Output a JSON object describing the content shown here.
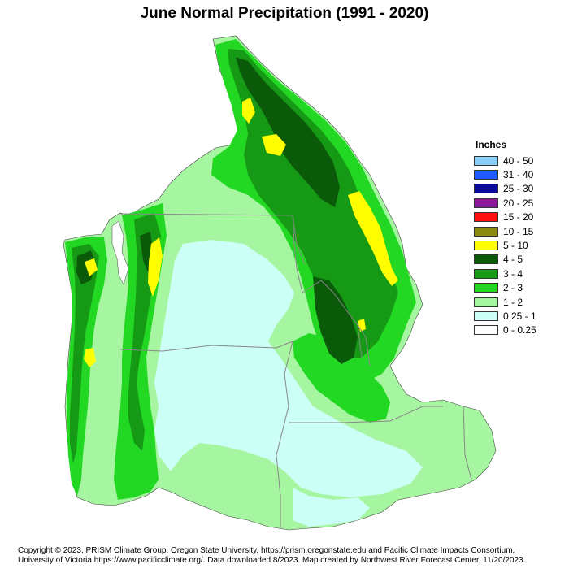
{
  "title": "June Normal Precipitation (1991 - 2020)",
  "legend": {
    "title": "Inches",
    "items": [
      {
        "label": "40 - 50",
        "color": "#87CEFA"
      },
      {
        "label": "31 - 40",
        "color": "#1E5AFF"
      },
      {
        "label": "25 - 30",
        "color": "#0A0A9A"
      },
      {
        "label": "20 - 25",
        "color": "#8B1A9A"
      },
      {
        "label": "15 - 20",
        "color": "#FF1010"
      },
      {
        "label": "10 - 15",
        "color": "#8A8A10"
      },
      {
        "label": "5 - 10",
        "color": "#FFFF00"
      },
      {
        "label": "4 - 5",
        "color": "#0A5A0A"
      },
      {
        "label": "3 - 4",
        "color": "#169A16"
      },
      {
        "label": "2 - 3",
        "color": "#22D822"
      },
      {
        "label": "1 - 2",
        "color": "#A6F5A0"
      },
      {
        "label": "0.25 - 1",
        "color": "#CCFFF5"
      },
      {
        "label": "0 - 0.25",
        "color": "#FFFFFF"
      }
    ]
  },
  "footer": {
    "line1": "Copyright © 2023, PRISM Climate Group, Oregon State University, https://prism.oregonstate.edu and Pacific Climate Impacts Consortium,",
    "line2": "University of Victoria https://www.pacificclimate.org/.  Data downloaded 8/2023. Map created by Northwest River Forecast Center, 11/20/2023."
  }
}
